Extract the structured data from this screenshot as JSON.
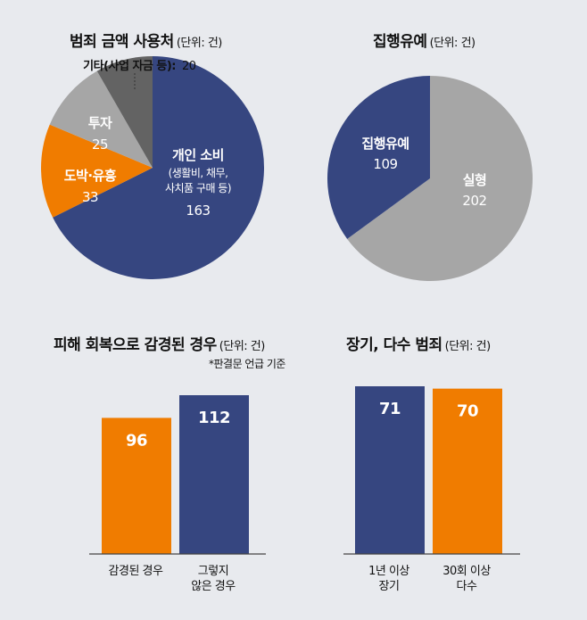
{
  "colors": {
    "navy": "#364680",
    "orange": "#f07c00",
    "gray": "#a6a6a6",
    "darkgray": "#636363",
    "bg": "#e8eaee"
  },
  "chart_data": [
    {
      "type": "pie",
      "title": "범죄 금액 사용처",
      "unit": "(단위: 건)",
      "slices": [
        {
          "label": "개인 소비",
          "sublabel": [
            "(생활비, 채무,",
            "사치품 구매 등)"
          ],
          "value": 163,
          "color": "#364680"
        },
        {
          "label": "도박·유흥",
          "value": 33,
          "color": "#f07c00"
        },
        {
          "label": "투자",
          "value": 25,
          "color": "#a6a6a6"
        },
        {
          "label": "기타(사업 자금 등)",
          "value": 20,
          "color": "#636363"
        }
      ]
    },
    {
      "type": "pie",
      "title": "집행유예",
      "unit": "(단위: 건)",
      "slices": [
        {
          "label": "집행유예",
          "value": 109,
          "color": "#364680"
        },
        {
          "label": "실형",
          "value": 202,
          "color": "#a6a6a6"
        }
      ]
    },
    {
      "type": "bar",
      "title": "피해 회복으로 감경된 경우",
      "unit": "(단위: 건)",
      "note": "*판결문 언급 기준",
      "categories": [
        [
          "감경된 경우"
        ],
        [
          "그렇지",
          "않은 경우"
        ]
      ],
      "values": [
        96,
        112
      ],
      "colors": [
        "#f07c00",
        "#364680"
      ],
      "ylim": [
        0,
        112
      ]
    },
    {
      "type": "bar",
      "title": "장기, 다수 범죄",
      "unit": "(단위: 건)",
      "categories": [
        [
          "1년 이상",
          "장기"
        ],
        [
          "30회 이상",
          "다수"
        ]
      ],
      "values": [
        71,
        70
      ],
      "colors": [
        "#364680",
        "#f07c00"
      ],
      "ylim": [
        0,
        71
      ]
    }
  ]
}
